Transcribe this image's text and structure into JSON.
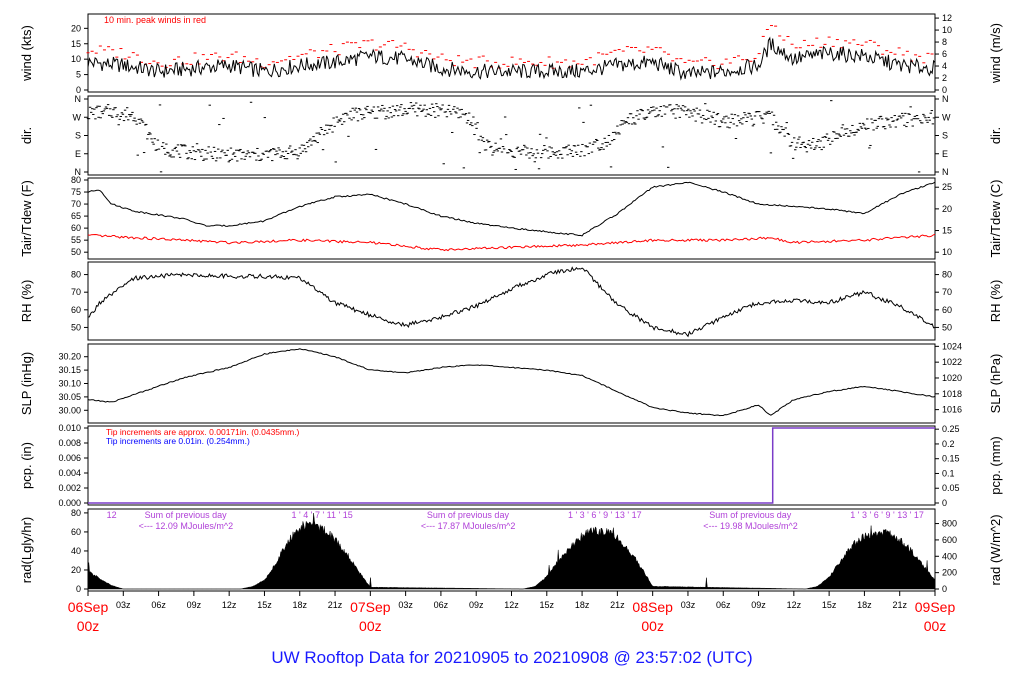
{
  "footer_title": "UW Rooftop Data for 20210905  to  20210908 @ 23:57:02  (UTC)",
  "colors": {
    "red": "#ff0000",
    "blue": "#0000ff",
    "purple": "#b040d8",
    "black": "#000000",
    "pcp_line": "#7a3cc8"
  },
  "x_axis": {
    "hour_ticks": [
      "03z",
      "06z",
      "09z",
      "12z",
      "15z",
      "18z",
      "21z",
      "07Sep",
      "03z",
      "06z",
      "09z",
      "12z",
      "15z",
      "18z",
      "21z",
      "08Sep",
      "03z",
      "06z",
      "09z",
      "12z",
      "15z",
      "18z",
      "21z",
      "09Sep"
    ],
    "day_labels": [
      {
        "date": "06Sep",
        "time": "00z",
        "hours": 0
      },
      {
        "date": "07Sep",
        "time": "00z",
        "hours": 24
      },
      {
        "date": "08Sep",
        "time": "00z",
        "hours": 48
      },
      {
        "date": "09Sep",
        "time": "00z",
        "hours": 72
      }
    ],
    "range_hours": [
      0,
      72
    ]
  },
  "chart_data": [
    {
      "type": "line",
      "panel": "wind",
      "ylabel_left": "wind (kts)",
      "ylabel_right": "wind (m/s)",
      "ylim": [
        0,
        24
      ],
      "yticks_left": [
        0,
        5,
        10,
        15,
        20
      ],
      "yticks_right": [
        0,
        2,
        4,
        6,
        8,
        10,
        12
      ],
      "annotation": "10 min. peak winds in red",
      "series": [
        {
          "name": "wind speed",
          "x": [
            0,
            3,
            6,
            9,
            12,
            15,
            18,
            21,
            24,
            27,
            30,
            33,
            36,
            39,
            42,
            45,
            48,
            51,
            54,
            57,
            58,
            60,
            63,
            66,
            69,
            72
          ],
          "values": [
            9,
            8,
            6,
            7,
            8,
            6,
            8,
            9,
            11,
            10,
            7,
            6,
            6,
            6,
            6,
            8,
            9,
            5,
            6,
            8,
            15,
            10,
            12,
            11,
            8,
            7
          ]
        },
        {
          "name": "peak wind",
          "x": [
            0,
            3,
            6,
            9,
            12,
            15,
            18,
            21,
            24,
            27,
            30,
            33,
            36,
            39,
            42,
            45,
            48,
            51,
            54,
            57,
            58,
            60,
            63,
            66,
            69,
            72
          ],
          "values": [
            13,
            12,
            9,
            10,
            11,
            9,
            11,
            13,
            15,
            14,
            10,
            9,
            9,
            9,
            9,
            12,
            13,
            8,
            9,
            11,
            22,
            14,
            16,
            15,
            12,
            10
          ]
        }
      ]
    },
    {
      "type": "scatter",
      "panel": "dir",
      "ylabel_left": "dir.",
      "ylabel_right": "dir.",
      "yticks": [
        "N",
        "E",
        "S",
        "W",
        "N"
      ],
      "series": [
        {
          "name": "direction (deg)",
          "x": [
            0,
            2,
            4,
            6,
            8,
            10,
            12,
            14,
            16,
            18,
            20,
            22,
            24,
            26,
            28,
            30,
            32,
            34,
            36,
            38,
            40,
            42,
            44,
            46,
            48,
            50,
            52,
            54,
            56,
            58,
            60,
            62,
            64,
            66,
            68,
            70,
            72
          ],
          "values": [
            290,
            300,
            280,
            120,
            100,
            90,
            85,
            80,
            90,
            100,
            200,
            280,
            290,
            300,
            310,
            300,
            290,
            120,
            100,
            95,
            100,
            110,
            150,
            260,
            290,
            300,
            280,
            250,
            260,
            270,
            140,
            130,
            200,
            230,
            250,
            260,
            270
          ]
        }
      ]
    },
    {
      "type": "line",
      "panel": "temp",
      "ylabel_left": "Tair/Tdew (F)",
      "ylabel_right": "Tair/Tdew (C)",
      "ylim": [
        48,
        80
      ],
      "yticks_left": [
        50,
        55,
        60,
        65,
        70,
        75,
        80
      ],
      "yticks_right": [
        10,
        15,
        20,
        25
      ],
      "series": [
        {
          "name": "Tair",
          "x": [
            0,
            1,
            2,
            4,
            8,
            10,
            12,
            15,
            18,
            21,
            24,
            27,
            30,
            33,
            36,
            38,
            40,
            42,
            45,
            48,
            51,
            54,
            57,
            60,
            63,
            66,
            69,
            72
          ],
          "values": [
            75,
            76,
            70,
            67,
            64,
            61,
            61,
            63,
            69,
            73,
            74,
            70,
            65,
            62,
            60,
            59,
            58,
            57,
            66,
            77,
            79,
            75,
            70,
            69,
            68,
            66,
            74,
            79
          ]
        },
        {
          "name": "Tdew",
          "x": [
            0,
            4,
            8,
            12,
            18,
            24,
            30,
            36,
            42,
            48,
            54,
            58,
            60,
            66,
            72
          ],
          "values": [
            57,
            56,
            55,
            54,
            55,
            54,
            51,
            52,
            53,
            55,
            55,
            56,
            54,
            55,
            57
          ]
        }
      ]
    },
    {
      "type": "line",
      "panel": "rh",
      "ylabel_left": "RH (%)",
      "ylabel_right": "RH (%)",
      "ylim": [
        44,
        86
      ],
      "yticks": [
        50,
        60,
        70,
        80
      ],
      "series": [
        {
          "name": "RH",
          "x": [
            0,
            1,
            4,
            8,
            12,
            15,
            18,
            21,
            24,
            27,
            30,
            33,
            36,
            39,
            42,
            45,
            48,
            51,
            54,
            57,
            60,
            63,
            66,
            69,
            72
          ],
          "values": [
            55,
            64,
            78,
            80,
            79,
            79,
            78,
            64,
            57,
            51,
            56,
            62,
            72,
            80,
            84,
            63,
            50,
            46,
            56,
            64,
            65,
            64,
            70,
            62,
            50
          ]
        }
      ]
    },
    {
      "type": "line",
      "panel": "slp",
      "ylabel_left": "SLP (inHg)",
      "ylabel_right": "SLP (hPa)",
      "ylim": [
        29.96,
        30.24
      ],
      "yticks_left": [
        30.0,
        30.05,
        30.1,
        30.15,
        30.2
      ],
      "yticks_right": [
        1016,
        1018,
        1020,
        1022,
        1024
      ],
      "series": [
        {
          "name": "SLP",
          "x": [
            0,
            2,
            4,
            8,
            12,
            15,
            18,
            21,
            24,
            27,
            30,
            33,
            36,
            39,
            42,
            45,
            48,
            51,
            54,
            57,
            58,
            60,
            63,
            66,
            69,
            72
          ],
          "values": [
            30.04,
            30.03,
            30.06,
            30.12,
            30.16,
            30.21,
            30.23,
            30.2,
            30.15,
            30.14,
            30.16,
            30.17,
            30.16,
            30.15,
            30.13,
            30.07,
            30.01,
            29.99,
            29.98,
            30.02,
            29.98,
            30.04,
            30.07,
            30.09,
            30.07,
            30.05
          ]
        }
      ]
    },
    {
      "type": "line",
      "panel": "pcp",
      "ylabel_left": "pcp. (in)",
      "ylabel_right": "pcp. (mm)",
      "ylim": [
        0,
        0.01
      ],
      "yticks_left": [
        0,
        0.002,
        0.004,
        0.006,
        0.008,
        0.01
      ],
      "yticks_right": [
        0,
        0.05,
        0.1,
        0.15,
        0.2,
        0.25
      ],
      "annotations": [
        {
          "text": "Tip increments are approx. 0.00171in. (0.0435mm.)",
          "color": "red"
        },
        {
          "text": "Tip increments are 0.01in. (0.254mm.)",
          "color": "blue"
        }
      ],
      "series": [
        {
          "name": "precip",
          "x": [
            0,
            58.2,
            58.2,
            72
          ],
          "values": [
            0,
            0,
            0.01,
            0.01
          ]
        }
      ]
    },
    {
      "type": "area",
      "panel": "rad",
      "ylabel_left": "rad(Lgly/hr)",
      "ylabel_right": "rad (W/m^2)",
      "ylim": [
        0,
        82
      ],
      "yticks_left": [
        0,
        20,
        40,
        60,
        80
      ],
      "yticks_right": [
        0,
        200,
        400,
        600,
        800
      ],
      "sunhour_labels": [
        "12",
        "1 ' 4 ' 7 ' 11 ' 15",
        "1 ' 3 ' 6 ' 9 ' 13 ' 17",
        "1 ' 3 ' 6 ' 9 ' 13 ' 17"
      ],
      "summaries": [
        {
          "title": "Sum of previous day",
          "value": "<--- 12.09 MJoules/m^2",
          "x_hours": 6
        },
        {
          "title": "Sum of previous day",
          "value": "<--- 17.87 MJoules/m^2",
          "x_hours": 30
        },
        {
          "title": "Sum of previous day",
          "value": "<--- 19.98 MJoules/m^2",
          "x_hours": 54
        }
      ],
      "series": [
        {
          "name": "radiation",
          "x": [
            0,
            1,
            2,
            3,
            13,
            14,
            15,
            16,
            17,
            18,
            19,
            20,
            21,
            22,
            23,
            24,
            37,
            38,
            39,
            40,
            41,
            42,
            43,
            44,
            45,
            46,
            47,
            48,
            61,
            62,
            63,
            64,
            65,
            66,
            67,
            68,
            69,
            70,
            71,
            72
          ],
          "values": [
            20,
            12,
            4,
            0,
            0,
            3,
            10,
            30,
            55,
            70,
            75,
            68,
            56,
            40,
            20,
            2,
            0,
            3,
            14,
            32,
            48,
            60,
            66,
            65,
            58,
            44,
            25,
            3,
            0,
            3,
            14,
            32,
            50,
            60,
            63,
            63,
            57,
            43,
            26,
            10
          ]
        }
      ]
    }
  ]
}
